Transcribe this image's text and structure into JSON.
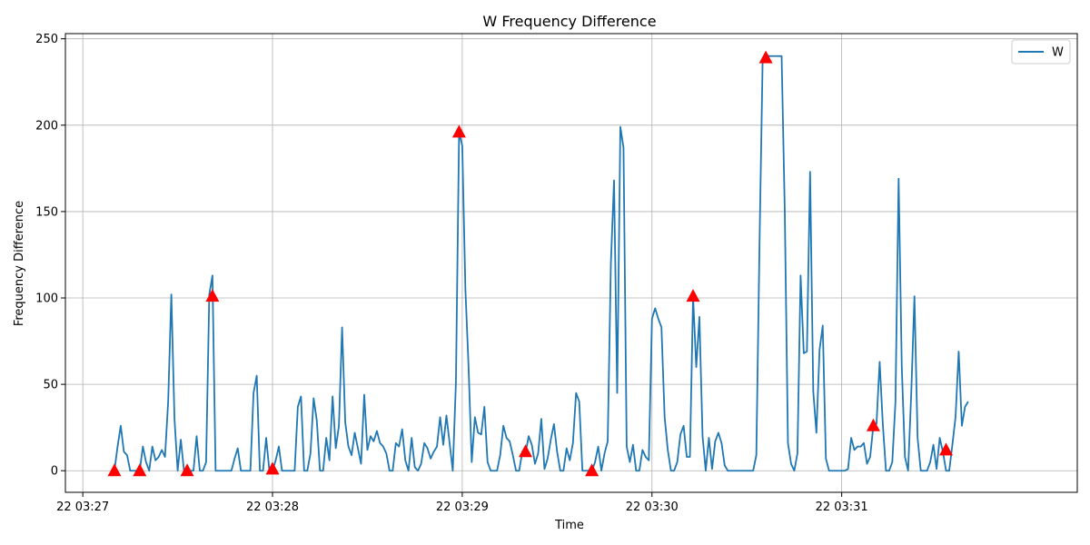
{
  "chart_data": {
    "type": "line",
    "title": "W Frequency Difference",
    "xlabel": "Time",
    "ylabel": "Frequency Difference",
    "x_unit": "seconds after 22 03:27:00",
    "xlim": [
      -5.5,
      314.5
    ],
    "ylim": [
      -12.5,
      253
    ],
    "x_ticks": [
      {
        "value": 0,
        "label": "22 03:27"
      },
      {
        "value": 60,
        "label": "22 03:28"
      },
      {
        "value": 120,
        "label": "22 03:29"
      },
      {
        "value": 180,
        "label": "22 03:30"
      },
      {
        "value": 240,
        "label": "22 03:31"
      }
    ],
    "y_ticks": [
      0,
      50,
      100,
      150,
      200,
      250
    ],
    "grid": true,
    "legend_position": "upper-right",
    "series": [
      {
        "name": "W",
        "color": "#1f77b4",
        "points": [
          [
            10,
            0
          ],
          [
            11,
            14
          ],
          [
            12,
            26
          ],
          [
            13,
            11
          ],
          [
            14,
            9
          ],
          [
            15,
            0
          ],
          [
            16,
            0
          ],
          [
            17,
            0
          ],
          [
            18,
            0
          ],
          [
            19,
            14
          ],
          [
            20,
            5
          ],
          [
            21,
            0
          ],
          [
            22,
            14
          ],
          [
            23,
            6
          ],
          [
            24,
            8
          ],
          [
            25,
            12
          ],
          [
            26,
            8
          ],
          [
            27,
            40
          ],
          [
            28,
            102
          ],
          [
            29,
            30
          ],
          [
            30,
            0
          ],
          [
            31,
            18
          ],
          [
            32,
            0
          ],
          [
            33,
            0
          ],
          [
            34,
            0
          ],
          [
            35,
            0
          ],
          [
            36,
            20
          ],
          [
            37,
            0
          ],
          [
            38,
            0
          ],
          [
            39,
            5
          ],
          [
            40,
            102
          ],
          [
            41,
            113
          ],
          [
            42,
            0
          ],
          [
            43,
            0
          ],
          [
            44,
            0
          ],
          [
            45,
            0
          ],
          [
            46,
            0
          ],
          [
            47,
            0
          ],
          [
            48,
            7
          ],
          [
            49,
            13
          ],
          [
            50,
            0
          ],
          [
            51,
            0
          ],
          [
            52,
            0
          ],
          [
            53,
            0
          ],
          [
            54,
            45
          ],
          [
            55,
            55
          ],
          [
            56,
            0
          ],
          [
            57,
            0
          ],
          [
            58,
            19
          ],
          [
            59,
            0
          ],
          [
            60,
            0
          ],
          [
            61,
            6
          ],
          [
            62,
            14
          ],
          [
            63,
            0
          ],
          [
            64,
            0
          ],
          [
            65,
            0
          ],
          [
            66,
            0
          ],
          [
            67,
            0
          ],
          [
            68,
            37
          ],
          [
            69,
            43
          ],
          [
            70,
            0
          ],
          [
            71,
            0
          ],
          [
            72,
            10
          ],
          [
            73,
            42
          ],
          [
            74,
            29
          ],
          [
            75,
            0
          ],
          [
            76,
            0
          ],
          [
            77,
            19
          ],
          [
            78,
            6
          ],
          [
            79,
            43
          ],
          [
            80,
            13
          ],
          [
            81,
            26
          ],
          [
            82,
            83
          ],
          [
            83,
            28
          ],
          [
            84,
            14
          ],
          [
            85,
            9
          ],
          [
            86,
            22
          ],
          [
            87,
            13
          ],
          [
            88,
            4
          ],
          [
            89,
            44
          ],
          [
            90,
            12
          ],
          [
            91,
            20
          ],
          [
            92,
            17
          ],
          [
            93,
            23
          ],
          [
            94,
            16
          ],
          [
            95,
            14
          ],
          [
            96,
            10
          ],
          [
            97,
            0
          ],
          [
            98,
            0
          ],
          [
            99,
            16
          ],
          [
            100,
            14
          ],
          [
            101,
            24
          ],
          [
            102,
            6
          ],
          [
            103,
            0
          ],
          [
            104,
            19
          ],
          [
            105,
            2
          ],
          [
            106,
            0
          ],
          [
            107,
            4
          ],
          [
            108,
            16
          ],
          [
            109,
            13
          ],
          [
            110,
            7
          ],
          [
            111,
            11
          ],
          [
            112,
            14
          ],
          [
            113,
            31
          ],
          [
            114,
            15
          ],
          [
            115,
            32
          ],
          [
            116,
            16
          ],
          [
            117,
            0
          ],
          [
            118,
            51
          ],
          [
            119,
            196
          ],
          [
            120,
            188
          ],
          [
            121,
            105
          ],
          [
            122,
            60
          ],
          [
            123,
            5
          ],
          [
            124,
            31
          ],
          [
            125,
            22
          ],
          [
            126,
            21
          ],
          [
            127,
            37
          ],
          [
            128,
            5
          ],
          [
            129,
            0
          ],
          [
            130,
            0
          ],
          [
            131,
            0
          ],
          [
            132,
            9
          ],
          [
            133,
            26
          ],
          [
            134,
            19
          ],
          [
            135,
            17
          ],
          [
            136,
            9
          ],
          [
            137,
            0
          ],
          [
            138,
            0
          ],
          [
            139,
            11
          ],
          [
            140,
            10
          ],
          [
            141,
            20
          ],
          [
            142,
            15
          ],
          [
            143,
            4
          ],
          [
            144,
            10
          ],
          [
            145,
            30
          ],
          [
            146,
            1
          ],
          [
            147,
            7
          ],
          [
            148,
            18
          ],
          [
            149,
            27
          ],
          [
            150,
            11
          ],
          [
            151,
            0
          ],
          [
            152,
            0
          ],
          [
            153,
            13
          ],
          [
            154,
            6
          ],
          [
            155,
            16
          ],
          [
            156,
            45
          ],
          [
            157,
            40
          ],
          [
            158,
            0
          ],
          [
            159,
            0
          ],
          [
            160,
            0
          ],
          [
            161,
            0
          ],
          [
            162,
            5
          ],
          [
            163,
            14
          ],
          [
            164,
            0
          ],
          [
            165,
            10
          ],
          [
            166,
            17
          ],
          [
            167,
            120
          ],
          [
            168,
            168
          ],
          [
            169,
            45
          ],
          [
            170,
            199
          ],
          [
            171,
            187
          ],
          [
            172,
            14
          ],
          [
            173,
            5
          ],
          [
            174,
            15
          ],
          [
            175,
            0
          ],
          [
            176,
            0
          ],
          [
            177,
            12
          ],
          [
            178,
            8
          ],
          [
            179,
            6
          ],
          [
            180,
            88
          ],
          [
            181,
            94
          ],
          [
            182,
            88
          ],
          [
            183,
            83
          ],
          [
            184,
            31
          ],
          [
            185,
            12
          ],
          [
            186,
            0
          ],
          [
            187,
            0
          ],
          [
            188,
            5
          ],
          [
            189,
            21
          ],
          [
            190,
            26
          ],
          [
            191,
            8
          ],
          [
            192,
            8
          ],
          [
            193,
            101
          ],
          [
            194,
            60
          ],
          [
            195,
            89
          ],
          [
            196,
            20
          ],
          [
            197,
            0
          ],
          [
            198,
            19
          ],
          [
            199,
            1
          ],
          [
            200,
            17
          ],
          [
            201,
            22
          ],
          [
            202,
            16
          ],
          [
            203,
            3
          ],
          [
            204,
            0
          ],
          [
            205,
            0
          ],
          [
            206,
            0
          ],
          [
            207,
            0
          ],
          [
            208,
            0
          ],
          [
            209,
            0
          ],
          [
            210,
            0
          ],
          [
            211,
            0
          ],
          [
            212,
            0
          ],
          [
            213,
            9
          ],
          [
            214,
            130
          ],
          [
            215,
            238
          ],
          [
            216,
            241
          ],
          [
            217,
            240
          ],
          [
            218,
            240
          ],
          [
            219,
            240
          ],
          [
            220,
            240
          ],
          [
            221,
            240
          ],
          [
            222,
            150
          ],
          [
            223,
            16
          ],
          [
            224,
            4
          ],
          [
            225,
            0
          ],
          [
            226,
            10
          ],
          [
            227,
            113
          ],
          [
            228,
            68
          ],
          [
            229,
            69
          ],
          [
            230,
            173
          ],
          [
            231,
            46
          ],
          [
            232,
            22
          ],
          [
            233,
            70
          ],
          [
            234,
            84
          ],
          [
            235,
            7
          ],
          [
            236,
            0
          ],
          [
            237,
            0
          ],
          [
            238,
            0
          ],
          [
            239,
            0
          ],
          [
            240,
            0
          ],
          [
            241,
            0
          ],
          [
            242,
            1
          ],
          [
            243,
            19
          ],
          [
            244,
            12
          ],
          [
            245,
            14
          ],
          [
            246,
            14
          ],
          [
            247,
            16
          ],
          [
            248,
            4
          ],
          [
            249,
            8
          ],
          [
            250,
            26
          ],
          [
            251,
            27
          ],
          [
            252,
            63
          ],
          [
            253,
            27
          ],
          [
            254,
            0
          ],
          [
            255,
            0
          ],
          [
            256,
            5
          ],
          [
            257,
            40
          ],
          [
            258,
            169
          ],
          [
            259,
            60
          ],
          [
            260,
            8
          ],
          [
            261,
            0
          ],
          [
            262,
            45
          ],
          [
            263,
            101
          ],
          [
            264,
            19
          ],
          [
            265,
            0
          ],
          [
            266,
            0
          ],
          [
            267,
            0
          ],
          [
            268,
            5
          ],
          [
            269,
            15
          ],
          [
            270,
            1
          ],
          [
            271,
            19
          ],
          [
            272,
            11
          ],
          [
            273,
            0
          ],
          [
            274,
            0
          ],
          [
            275,
            15
          ],
          [
            276,
            31
          ],
          [
            277,
            69
          ],
          [
            278,
            26
          ],
          [
            279,
            37
          ],
          [
            280,
            40
          ]
        ]
      }
    ],
    "markers": {
      "shape": "triangle-up",
      "color": "#ff0000",
      "points": [
        [
          10,
          0
        ],
        [
          18,
          0
        ],
        [
          33,
          0
        ],
        [
          41,
          101
        ],
        [
          60,
          1
        ],
        [
          119,
          196
        ],
        [
          140,
          11
        ],
        [
          161,
          0
        ],
        [
          193,
          101
        ],
        [
          216,
          239
        ],
        [
          250,
          26
        ],
        [
          273,
          12
        ]
      ]
    }
  }
}
